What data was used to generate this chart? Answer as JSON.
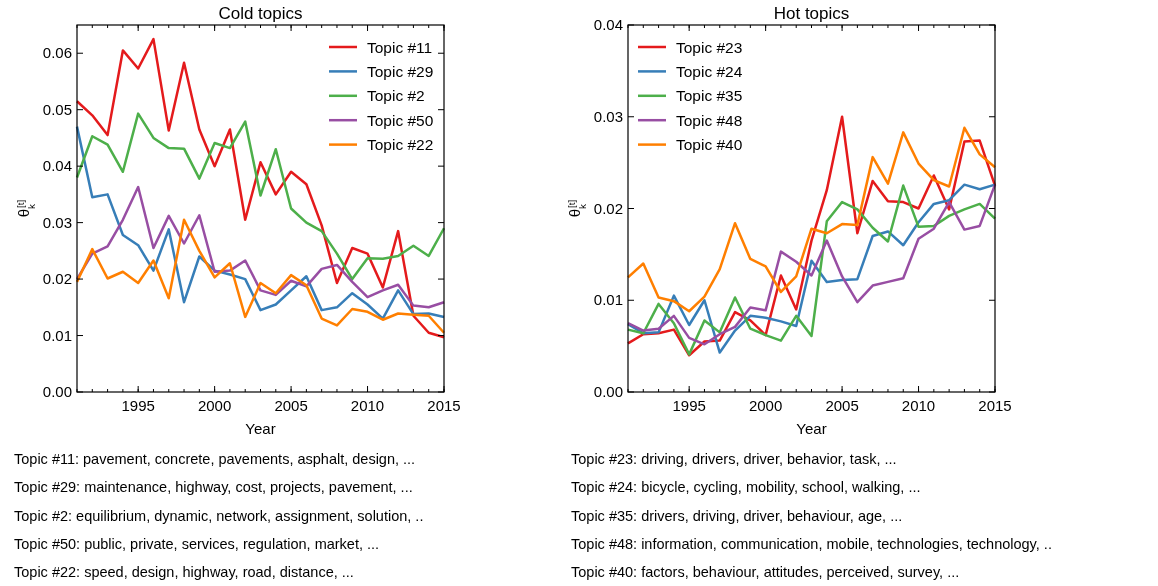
{
  "chart_data": [
    {
      "type": "line",
      "title": "Cold topics",
      "xlabel": "Year",
      "ylabel": "θ$_{k}$$^{[t]}$",
      "x": [
        1991,
        1992,
        1993,
        1994,
        1995,
        1996,
        1997,
        1998,
        1999,
        2000,
        2001,
        2002,
        2003,
        2004,
        2005,
        2006,
        2007,
        2008,
        2009,
        2010,
        2011,
        2012,
        2013,
        2014,
        2015
      ],
      "xlim": [
        1991,
        2015
      ],
      "xticks": [
        1995,
        2000,
        2005,
        2010,
        2015
      ],
      "ylim": [
        0,
        0.065
      ],
      "yticks": [
        {
          "value": 0,
          "label": "0.00"
        },
        {
          "value": 0.01,
          "label": "0.01"
        },
        {
          "value": 0.02,
          "label": "0.02"
        },
        {
          "value": 0.03,
          "label": "0.03"
        },
        {
          "value": 0.04,
          "label": "0.04"
        },
        {
          "value": 0.05,
          "label": "0.05"
        },
        {
          "value": 0.06,
          "label": "0.06"
        }
      ],
      "grid": false,
      "legend": "top right",
      "series": [
        {
          "name": "Topic #11",
          "color": "#e41a1c",
          "values": [
            0.0515,
            0.049,
            0.0455,
            0.0605,
            0.0573,
            0.0625,
            0.0463,
            0.0583,
            0.0465,
            0.04,
            0.0465,
            0.0305,
            0.0407,
            0.035,
            0.039,
            0.0368,
            0.0295,
            0.0193,
            0.0255,
            0.0245,
            0.0185,
            0.0285,
            0.0135,
            0.0105,
            0.0097
          ]
        },
        {
          "name": "Topic #29",
          "color": "#377eb8",
          "values": [
            0.047,
            0.0345,
            0.035,
            0.0278,
            0.026,
            0.0215,
            0.0288,
            0.0159,
            0.024,
            0.0215,
            0.0208,
            0.02,
            0.0145,
            0.0155,
            0.018,
            0.0205,
            0.0145,
            0.015,
            0.0175,
            0.0155,
            0.013,
            0.018,
            0.0138,
            0.0139,
            0.0133
          ]
        },
        {
          "name": "Topic #2",
          "color": "#4daf4a",
          "values": [
            0.038,
            0.0453,
            0.0438,
            0.039,
            0.0493,
            0.045,
            0.0432,
            0.0431,
            0.0378,
            0.0441,
            0.0432,
            0.0479,
            0.0348,
            0.043,
            0.0325,
            0.03,
            0.0285,
            0.0245,
            0.02,
            0.0237,
            0.0236,
            0.0241,
            0.0259,
            0.0241,
            0.029
          ]
        },
        {
          "name": "Topic #50",
          "color": "#984ea3",
          "values": [
            0.02,
            0.0245,
            0.0258,
            0.0305,
            0.0363,
            0.0255,
            0.0312,
            0.0263,
            0.0313,
            0.0213,
            0.0215,
            0.0233,
            0.018,
            0.0172,
            0.0197,
            0.0187,
            0.0218,
            0.0225,
            0.0195,
            0.0168,
            0.018,
            0.019,
            0.0153,
            0.015,
            0.0159
          ]
        },
        {
          "name": "Topic #22",
          "color": "#ff7f00",
          "values": [
            0.0195,
            0.0253,
            0.0201,
            0.0213,
            0.0193,
            0.0233,
            0.0166,
            0.0305,
            0.025,
            0.0203,
            0.0228,
            0.0133,
            0.0193,
            0.0175,
            0.0207,
            0.0189,
            0.013,
            0.0118,
            0.0147,
            0.0142,
            0.0128,
            0.0139,
            0.0137,
            0.0135,
            0.0105
          ]
        }
      ],
      "annotations": [
        "Topic #11: pavement, concrete, pavements, asphalt, design, ...",
        "Topic #29: maintenance, highway, cost, projects, pavement, ...",
        "Topic #2: equilibrium, dynamic, network, assignment, solution, ..",
        "Topic #50: public, private, services, regulation, market, ...",
        "Topic #22: speed, design, highway, road, distance, ..."
      ]
    },
    {
      "type": "line",
      "title": "Hot topics",
      "xlabel": "Year",
      "ylabel": "θ$_{k}$$^{[t]}$",
      "x": [
        1991,
        1992,
        1993,
        1994,
        1995,
        1996,
        1997,
        1998,
        1999,
        2000,
        2001,
        2002,
        2003,
        2004,
        2005,
        2006,
        2007,
        2008,
        2009,
        2010,
        2011,
        2012,
        2013,
        2014,
        2015
      ],
      "xlim": [
        1991,
        2015
      ],
      "xticks": [
        1995,
        2000,
        2005,
        2010,
        2015
      ],
      "ylim": [
        0,
        0.04
      ],
      "yticks": [
        {
          "value": 0,
          "label": "0.00"
        },
        {
          "value": 0.01,
          "label": "0.01"
        },
        {
          "value": 0.02,
          "label": "0.02"
        },
        {
          "value": 0.03,
          "label": "0.03"
        },
        {
          "value": 0.04,
          "label": "0.04"
        }
      ],
      "grid": false,
      "legend": "top left",
      "series": [
        {
          "name": "Topic #23",
          "color": "#e41a1c",
          "values": [
            0.0053,
            0.0063,
            0.0064,
            0.0068,
            0.004,
            0.0055,
            0.0056,
            0.0087,
            0.0078,
            0.0062,
            0.0127,
            0.009,
            0.0165,
            0.022,
            0.03,
            0.0173,
            0.023,
            0.0208,
            0.0207,
            0.02,
            0.0236,
            0.0199,
            0.0273,
            0.0274,
            0.0225
          ]
        },
        {
          "name": "Topic #24",
          "color": "#377eb8",
          "values": [
            0.0074,
            0.0064,
            0.0065,
            0.0105,
            0.0073,
            0.01,
            0.0043,
            0.0067,
            0.0083,
            0.0081,
            0.0077,
            0.0072,
            0.0143,
            0.012,
            0.0122,
            0.0123,
            0.017,
            0.0175,
            0.016,
            0.0185,
            0.0205,
            0.0209,
            0.0226,
            0.0221,
            0.0226
          ]
        },
        {
          "name": "Topic #35",
          "color": "#4daf4a",
          "values": [
            0.0068,
            0.0064,
            0.0096,
            0.0075,
            0.0041,
            0.0078,
            0.0065,
            0.0103,
            0.0069,
            0.0062,
            0.0056,
            0.0083,
            0.0061,
            0.0186,
            0.0207,
            0.0199,
            0.0179,
            0.0164,
            0.0225,
            0.018,
            0.0181,
            0.0192,
            0.0199,
            0.0205,
            0.0189
          ]
        },
        {
          "name": "Topic #48",
          "color": "#984ea3",
          "values": [
            0.0075,
            0.0067,
            0.0069,
            0.0083,
            0.0059,
            0.0052,
            0.0063,
            0.0071,
            0.0092,
            0.0089,
            0.0153,
            0.0142,
            0.0127,
            0.0165,
            0.0126,
            0.0098,
            0.0116,
            0.012,
            0.0124,
            0.0167,
            0.0178,
            0.0207,
            0.0177,
            0.0181,
            0.0226
          ]
        },
        {
          "name": "Topic #40",
          "color": "#ff7f00",
          "values": [
            0.0125,
            0.014,
            0.0103,
            0.0099,
            0.0088,
            0.0104,
            0.0134,
            0.0184,
            0.0145,
            0.0137,
            0.0109,
            0.0126,
            0.0178,
            0.0173,
            0.0183,
            0.0182,
            0.0256,
            0.0227,
            0.0283,
            0.0249,
            0.0231,
            0.0224,
            0.0288,
            0.0259,
            0.0245
          ]
        }
      ],
      "annotations": [
        "Topic #23: driving, drivers, driver, behavior, task, ...",
        "Topic #24: bicycle, cycling, mobility, school, walking, ...",
        "Topic #35: drivers, driving, driver, behaviour, age, ...",
        "Topic #48: information, communication, mobile, technologies, technology, ..",
        "Topic #40: factors, behaviour, attitudes, perceived, survey, ..."
      ]
    }
  ]
}
